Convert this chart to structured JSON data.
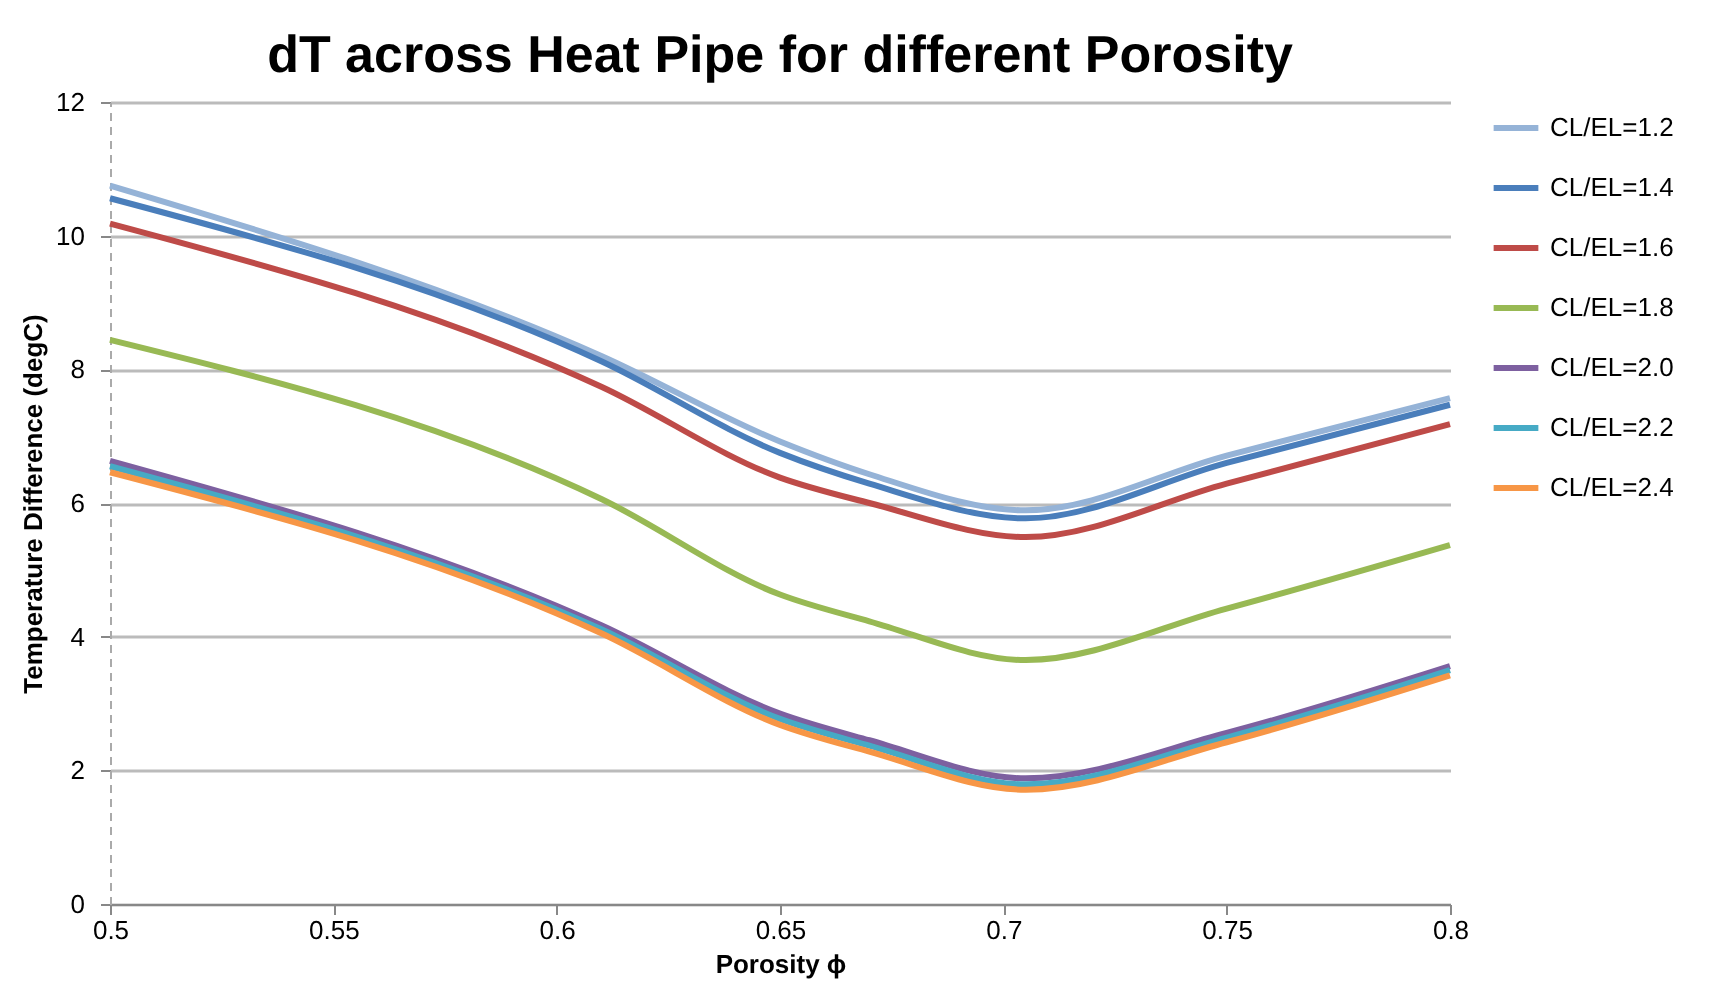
{
  "chart_data": {
    "type": "line",
    "title": "dT across Heat Pipe for different Porosity",
    "xlabel": "Porosity ϕ",
    "ylabel": "Temperature Difference (degC)",
    "x": [
      0.5,
      0.61,
      0.65,
      0.67,
      0.705,
      0.75,
      0.8
    ],
    "series": [
      {
        "name": "CL/EL=1.2",
        "color": "#95b3d7",
        "values": [
          10.75,
          8.2,
          6.92,
          6.43,
          5.89,
          6.71,
          7.57
        ]
      },
      {
        "name": "CL/EL=1.4",
        "color": "#4a7ebb",
        "values": [
          10.56,
          8.12,
          6.75,
          6.29,
          5.77,
          6.6,
          7.47
        ]
      },
      {
        "name": "CL/EL=1.6",
        "color": "#be4b48",
        "values": [
          10.18,
          7.74,
          6.38,
          6.0,
          5.49,
          6.29,
          7.18
        ]
      },
      {
        "name": "CL/EL=1.8",
        "color": "#98b954",
        "values": [
          8.44,
          6.06,
          4.63,
          4.23,
          3.65,
          4.42,
          5.37
        ]
      },
      {
        "name": "CL/EL=2.0",
        "color": "#7d60a0",
        "values": [
          6.63,
          4.17,
          2.85,
          2.45,
          1.88,
          2.56,
          3.56
        ]
      },
      {
        "name": "CL/EL=2.2",
        "color": "#46aac5",
        "values": [
          6.55,
          4.11,
          2.77,
          2.37,
          1.79,
          2.49,
          3.5
        ]
      },
      {
        "name": "CL/EL=2.4",
        "color": "#f79646",
        "values": [
          6.46,
          4.05,
          2.68,
          2.28,
          1.71,
          2.42,
          3.42
        ]
      }
    ],
    "xlim": [
      0.5,
      0.8
    ],
    "xticks": [
      0.5,
      0.55,
      0.6,
      0.65,
      0.7,
      0.75,
      0.8
    ],
    "ylim": [
      0,
      12
    ],
    "yticks": [
      0,
      2,
      4,
      6,
      8,
      10,
      12
    ],
    "grid": "y",
    "legend": "right",
    "marker": "none",
    "line_style": "solid"
  }
}
